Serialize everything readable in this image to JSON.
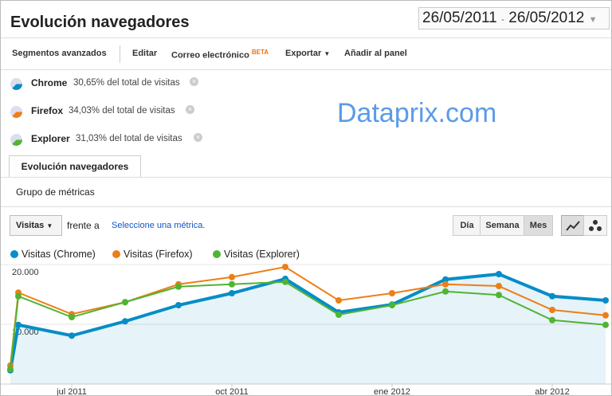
{
  "header": {
    "title": "Evolución navegadores",
    "date_start": "26/05/2011",
    "date_separator": "-",
    "date_end": "26/05/2012"
  },
  "toolbar": {
    "items": [
      "Segmentos avanzados",
      "Editar",
      "Correo electrónico",
      "Exportar",
      "Añadir al panel"
    ],
    "beta": "BETA"
  },
  "segments": [
    {
      "name": "Chrome",
      "share": "30,65% del total de visitas"
    },
    {
      "name": "Firefox",
      "share": "34,03% del total de visitas"
    },
    {
      "name": "Explorer",
      "share": "31,03% del total de visitas"
    }
  ],
  "watermark": "Dataprix.com",
  "tab": "Evolución navegadores",
  "metric_group": "Grupo de métricas",
  "controls": {
    "metric": "Visitas",
    "versus": "frente a",
    "select_metric": "Seleccione una métrica.",
    "periods": [
      "Día",
      "Semana",
      "Mes"
    ]
  },
  "chart_data": {
    "type": "line",
    "categories": [
      null,
      null,
      "jul 2011",
      null,
      null,
      "oct 2011",
      null,
      null,
      "ene 2012",
      null,
      null,
      "abr 2012",
      null
    ],
    "series": [
      {
        "name": "Visitas (Chrome)",
        "color": "#058dc7",
        "area": true,
        "values": [
          2300,
          9900,
          8100,
          10500,
          13200,
          15200,
          17600,
          12000,
          13300,
          17500,
          18400,
          14700,
          14000
        ]
      },
      {
        "name": "Visitas (Firefox)",
        "color": "#ed7e17",
        "values": [
          3100,
          15300,
          11700,
          13700,
          16700,
          17900,
          19600,
          14000,
          15200,
          16700,
          16400,
          12400,
          11500
        ]
      },
      {
        "name": "Visitas (Explorer)",
        "color": "#50b432",
        "values": [
          2500,
          14700,
          11200,
          13700,
          16300,
          16700,
          17100,
          11600,
          13200,
          15500,
          14900,
          10700,
          9900
        ]
      }
    ],
    "ylim": [
      0,
      20400
    ],
    "yticks": [
      {
        "value": 10000,
        "label": "10.000"
      },
      {
        "value": 20000,
        "label": "20.000"
      }
    ],
    "grid": true
  }
}
